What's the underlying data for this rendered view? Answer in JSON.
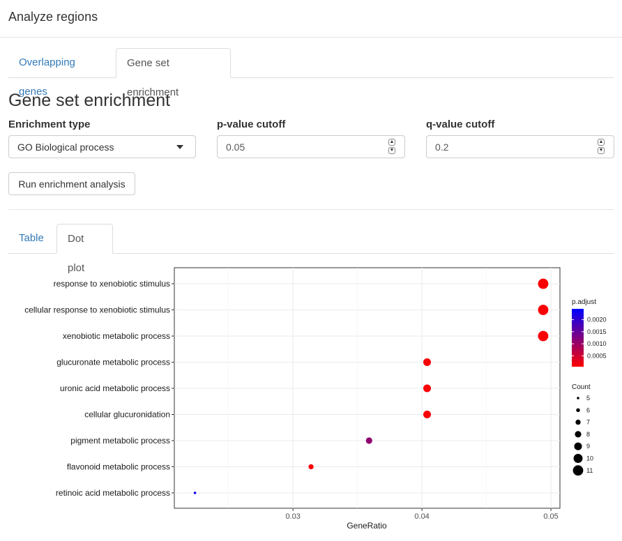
{
  "app": {
    "title": "Analyze regions"
  },
  "main_tabs": [
    {
      "label": "Overlapping genes",
      "active": false
    },
    {
      "label": "Gene set enrichment",
      "active": true
    }
  ],
  "section": {
    "title": "Gene set enrichment"
  },
  "form": {
    "enrichment_type": {
      "label": "Enrichment type",
      "value": "GO Biological process"
    },
    "pvalue": {
      "label": "p-value cutoff",
      "value": "0.05"
    },
    "qvalue": {
      "label": "q-value cutoff",
      "value": "0.2"
    },
    "run_label": "Run enrichment analysis"
  },
  "result_tabs": [
    {
      "label": "Table",
      "active": false
    },
    {
      "label": "Dot plot",
      "active": true
    }
  ],
  "chart_data": {
    "type": "scatter",
    "xlabel": "GeneRatio",
    "ylabel": "",
    "xlim": [
      0.0208,
      0.0507
    ],
    "xticks": [
      0.03,
      0.04,
      0.05
    ],
    "xtick_labels": [
      "0.03",
      "0.04",
      "0.05"
    ],
    "grid": true,
    "points": [
      {
        "term": "response to xenobiotic stimulus",
        "gene_ratio": 0.0494,
        "count": 11,
        "p_adjust": 0.0001
      },
      {
        "term": "cellular response to xenobiotic stimulus",
        "gene_ratio": 0.0494,
        "count": 11,
        "p_adjust": 0.0001
      },
      {
        "term": "xenobiotic metabolic process",
        "gene_ratio": 0.0494,
        "count": 11,
        "p_adjust": 0.0001
      },
      {
        "term": "glucuronate metabolic process",
        "gene_ratio": 0.0404,
        "count": 9,
        "p_adjust": 0.0001
      },
      {
        "term": "uronic acid metabolic process",
        "gene_ratio": 0.0404,
        "count": 9,
        "p_adjust": 0.0001
      },
      {
        "term": "cellular glucuronidation",
        "gene_ratio": 0.0404,
        "count": 9,
        "p_adjust": 0.0001
      },
      {
        "term": "pigment metabolic process",
        "gene_ratio": 0.0359,
        "count": 8,
        "p_adjust": 0.0011
      },
      {
        "term": "flavonoid metabolic process",
        "gene_ratio": 0.0314,
        "count": 7,
        "p_adjust": 0.0001
      },
      {
        "term": "retinoic acid metabolic process",
        "gene_ratio": 0.0224,
        "count": 5,
        "p_adjust": 0.0024
      }
    ],
    "color_legend": {
      "title": "p.adjust",
      "ticks": [
        0.002,
        0.0015,
        0.001,
        0.0005
      ],
      "tick_labels": [
        "0.0020",
        "0.0015",
        "0.0010",
        "0.0005"
      ],
      "low_color": "#ff0000",
      "high_color": "#0000ff",
      "range": [
        5e-05,
        0.00245
      ]
    },
    "size_legend": {
      "title": "Count",
      "values": [
        5,
        6,
        7,
        8,
        9,
        10,
        11
      ]
    }
  }
}
